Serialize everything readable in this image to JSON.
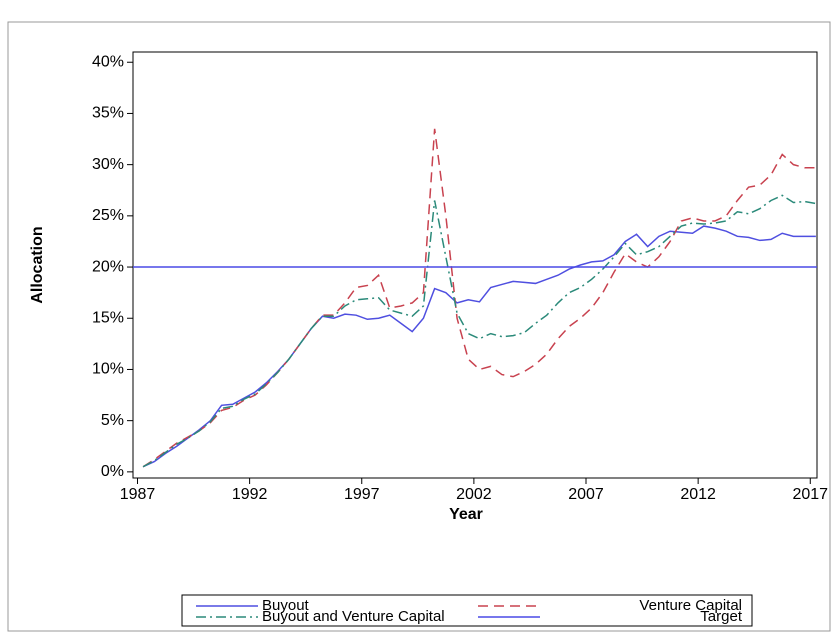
{
  "chart_data": {
    "type": "line",
    "xlabel": "Year",
    "ylabel": "Allocation",
    "xlim": [
      1986.8,
      2017.3
    ],
    "xticks": [
      1987,
      1992,
      1997,
      2002,
      2007,
      2012,
      2017
    ],
    "ylim": [
      -0.6,
      41
    ],
    "yticks": [
      {
        "value": 0,
        "label": "0%"
      },
      {
        "value": 5,
        "label": "5%"
      },
      {
        "value": 10,
        "label": "10%"
      },
      {
        "value": 15,
        "label": "15%"
      },
      {
        "value": 20,
        "label": "20%"
      },
      {
        "value": 25,
        "label": "25%"
      },
      {
        "value": 30,
        "label": "30%"
      },
      {
        "value": 35,
        "label": "35%"
      },
      {
        "value": 40,
        "label": "40%"
      }
    ],
    "x": [
      1987.25,
      1987.75,
      1988.25,
      1988.75,
      1989.25,
      1989.75,
      1990.25,
      1990.75,
      1991.25,
      1991.75,
      1992.25,
      1992.75,
      1993.25,
      1993.75,
      1994.25,
      1994.75,
      1995.25,
      1995.75,
      1996.25,
      1996.75,
      1997.25,
      1997.75,
      1998.25,
      1998.75,
      1999.25,
      1999.75,
      2000.25,
      2000.75,
      2001.25,
      2001.75,
      2002.25,
      2002.75,
      2003.25,
      2003.75,
      2004.25,
      2004.75,
      2005.25,
      2005.75,
      2006.25,
      2006.75,
      2007.25,
      2007.75,
      2008.25,
      2008.75,
      2009.25,
      2009.75,
      2010.25,
      2010.75,
      2011.25,
      2011.75,
      2012.25,
      2012.75,
      2013.25,
      2013.75,
      2014.25,
      2014.75,
      2015.25,
      2015.75,
      2016.25,
      2016.75,
      2017.25
    ],
    "series": [
      {
        "name": "Buyout",
        "color": "#4f4fe0",
        "dash": "none",
        "values": [
          0.5,
          1,
          1.8,
          2.5,
          3.3,
          4.1,
          5,
          6.5,
          6.6,
          7.2,
          7.8,
          8.7,
          9.8,
          11,
          12.5,
          14,
          15.2,
          15,
          15.4,
          15.3,
          14.9,
          15,
          15.3,
          14.5,
          13.7,
          15,
          17.9,
          17.5,
          16.5,
          16.8,
          16.6,
          18,
          18.3,
          18.6,
          18.5,
          18.4,
          18.8,
          19.2,
          19.8,
          20.2,
          20.5,
          20.6,
          21.2,
          22.5,
          23.2,
          22,
          23,
          23.5,
          23.4,
          23.3,
          24,
          23.8,
          23.5,
          23,
          22.9,
          22.6,
          22.7,
          23.3,
          23,
          23,
          23
        ]
      },
      {
        "name": "Venture Capital",
        "color": "#c8424f",
        "dash": "10,6",
        "values": [
          0.5,
          1.2,
          2,
          2.8,
          3.4,
          4,
          4.8,
          6,
          6.3,
          7,
          7.5,
          8.5,
          9.7,
          11,
          12.5,
          14,
          15.3,
          15.3,
          16.5,
          18,
          18.2,
          19.2,
          16,
          16.2,
          16.5,
          17.5,
          33.5,
          25,
          15,
          11,
          10,
          10.3,
          9.5,
          9.3,
          9.8,
          10.5,
          11.5,
          13,
          14.2,
          15,
          16,
          17.5,
          19.5,
          21.3,
          20.5,
          20,
          21,
          22.5,
          24.5,
          24.8,
          24.5,
          24.5,
          25,
          26.5,
          27.8,
          28,
          29,
          31,
          30,
          29.7,
          29.7
        ]
      },
      {
        "name": "Buyout and Venture Capital",
        "color": "#2b8a7a",
        "dash": "10,4,2,4",
        "values": [
          0.5,
          1.1,
          1.9,
          2.7,
          3.3,
          4,
          4.9,
          6.2,
          6.4,
          7.1,
          7.6,
          8.6,
          9.7,
          11,
          12.5,
          14,
          15.2,
          15.2,
          16.2,
          16.8,
          16.9,
          17,
          15.8,
          15.5,
          15.2,
          16.2,
          26.5,
          21,
          15.5,
          13.5,
          13,
          13.5,
          13.2,
          13.3,
          13.6,
          14.5,
          15.3,
          16.5,
          17.5,
          18,
          18.8,
          19.8,
          21,
          22.3,
          21.2,
          21.5,
          22,
          23,
          24,
          24.3,
          24.2,
          24.3,
          24.5,
          25.4,
          25.2,
          25.7,
          26.5,
          27,
          26.3,
          26.4,
          26.2
        ]
      },
      {
        "name": "Target",
        "color": "#4a4ae6",
        "dash": "none",
        "x": [
          1986.8,
          2017.3
        ],
        "values": [
          20,
          20
        ]
      }
    ]
  }
}
